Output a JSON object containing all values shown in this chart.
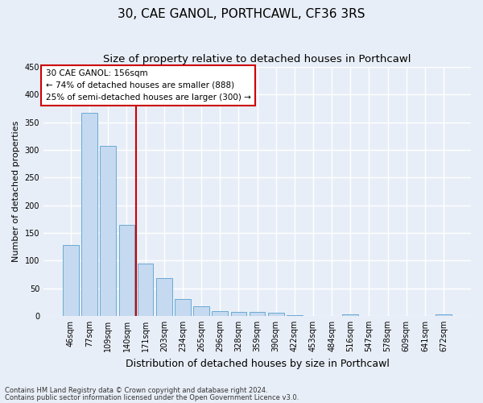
{
  "title": "30, CAE GANOL, PORTHCAWL, CF36 3RS",
  "subtitle": "Size of property relative to detached houses in Porthcawl",
  "xlabel": "Distribution of detached houses by size in Porthcawl",
  "ylabel": "Number of detached properties",
  "categories": [
    "46sqm",
    "77sqm",
    "109sqm",
    "140sqm",
    "171sqm",
    "203sqm",
    "234sqm",
    "265sqm",
    "296sqm",
    "328sqm",
    "359sqm",
    "390sqm",
    "422sqm",
    "453sqm",
    "484sqm",
    "516sqm",
    "547sqm",
    "578sqm",
    "609sqm",
    "641sqm",
    "672sqm"
  ],
  "values": [
    128,
    367,
    307,
    165,
    94,
    69,
    30,
    17,
    9,
    7,
    7,
    5,
    2,
    0,
    0,
    3,
    0,
    0,
    0,
    0,
    3
  ],
  "bar_color": "#c5d9f0",
  "bar_edge_color": "#6aaad4",
  "vline_color": "#cc0000",
  "annotation_line1": "30 CAE GANOL: 156sqm",
  "annotation_line2": "← 74% of detached houses are smaller (888)",
  "annotation_line3": "25% of semi-detached houses are larger (300) →",
  "annotation_box_color": "#cc0000",
  "ylim": [
    0,
    450
  ],
  "yticks": [
    0,
    50,
    100,
    150,
    200,
    250,
    300,
    350,
    400,
    450
  ],
  "footer_line1": "Contains HM Land Registry data © Crown copyright and database right 2024.",
  "footer_line2": "Contains public sector information licensed under the Open Government Licence v3.0.",
  "bg_color": "#e8eef7",
  "plot_bg_color": "#e8eef7",
  "grid_color": "#ffffff",
  "title_fontsize": 11,
  "subtitle_fontsize": 9.5
}
